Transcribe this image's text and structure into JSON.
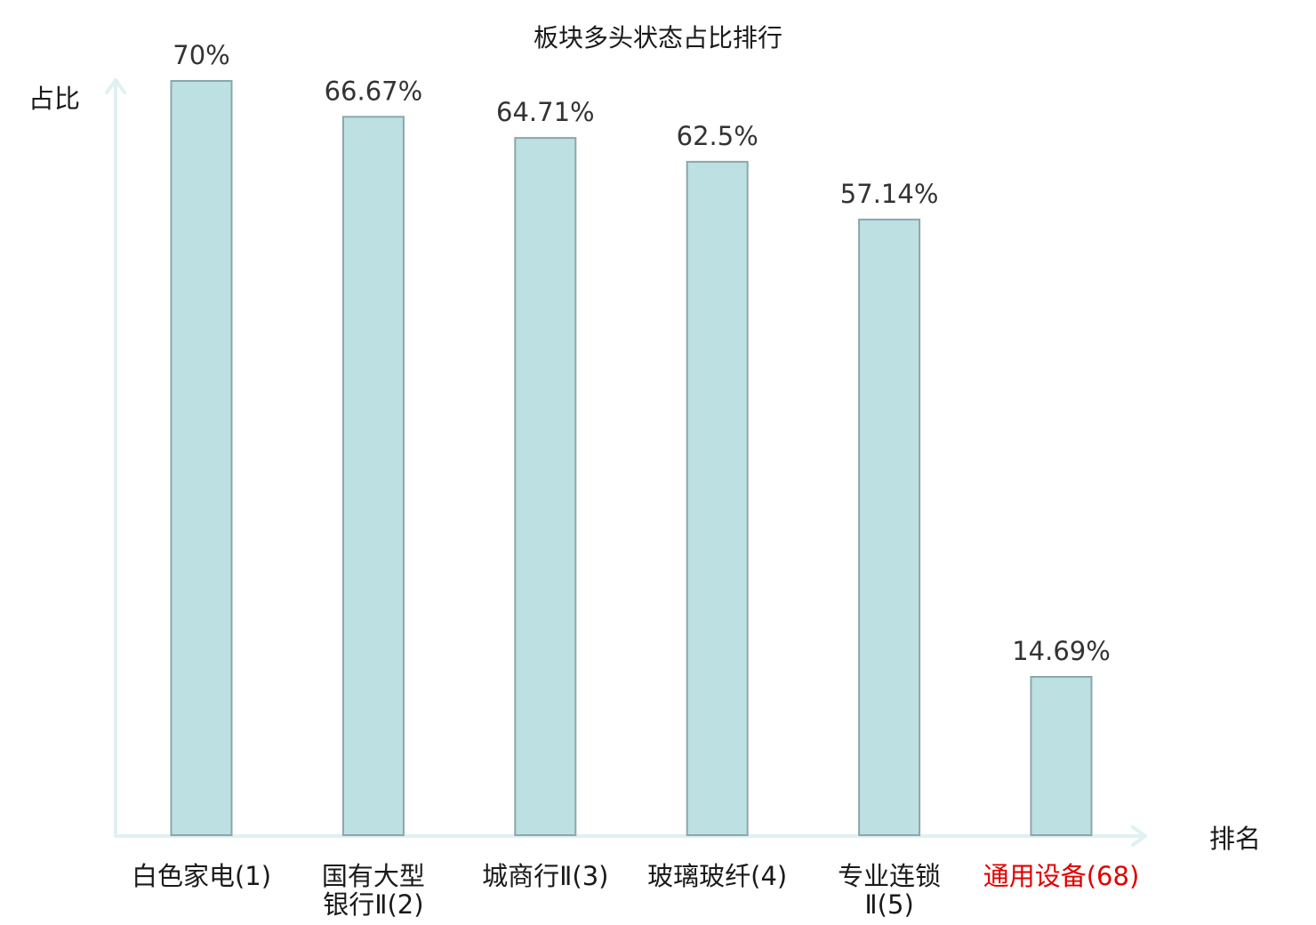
{
  "chart_data": {
    "type": "bar",
    "title": "板块多头状态占比排行",
    "ylabel": "占比",
    "xlabel": "排名",
    "ylim": [
      0,
      70
    ],
    "grid": false,
    "categories": [
      {
        "lines": [
          "白色家电(1)"
        ],
        "highlight": false
      },
      {
        "lines": [
          "国有大型",
          "银行Ⅱ(2)"
        ],
        "highlight": false
      },
      {
        "lines": [
          "城商行Ⅱ(3)"
        ],
        "highlight": false
      },
      {
        "lines": [
          "玻璃玻纤(4)"
        ],
        "highlight": false
      },
      {
        "lines": [
          "专业连锁",
          "Ⅱ(5)"
        ],
        "highlight": false
      },
      {
        "lines": [
          "通用设备(68)"
        ],
        "highlight": true
      }
    ],
    "values": [
      70,
      66.67,
      64.71,
      62.5,
      57.14,
      14.69
    ],
    "value_labels": [
      "70%",
      "66.67%",
      "64.71%",
      "62.5%",
      "57.14%",
      "14.69%"
    ],
    "colors": {
      "bar_fill": "#bde0e3",
      "bar_stroke": "#8aa7aa",
      "axis": "#dff1f0",
      "highlight_label": "#e00000"
    }
  }
}
